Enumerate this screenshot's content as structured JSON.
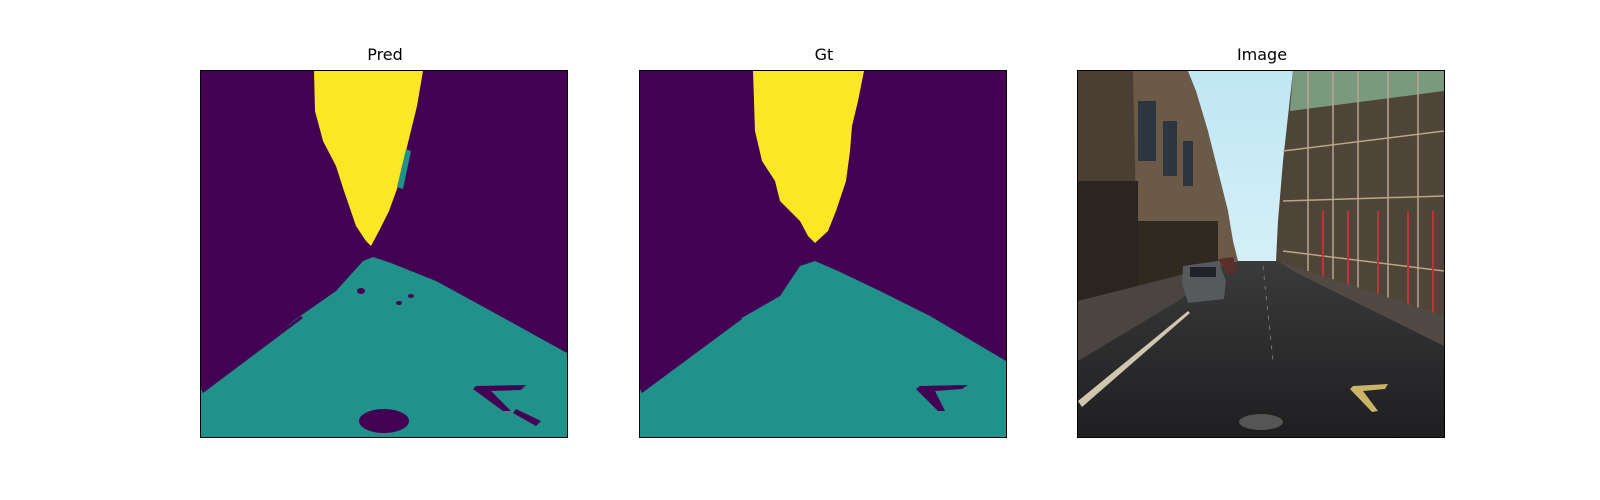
{
  "figure": {
    "panels": [
      {
        "title": "Pred"
      },
      {
        "title": "Gt"
      },
      {
        "title": "Image"
      }
    ],
    "colors": {
      "background_class": "#440154",
      "road_class": "#21918c",
      "sky_class": "#fde725"
    }
  }
}
